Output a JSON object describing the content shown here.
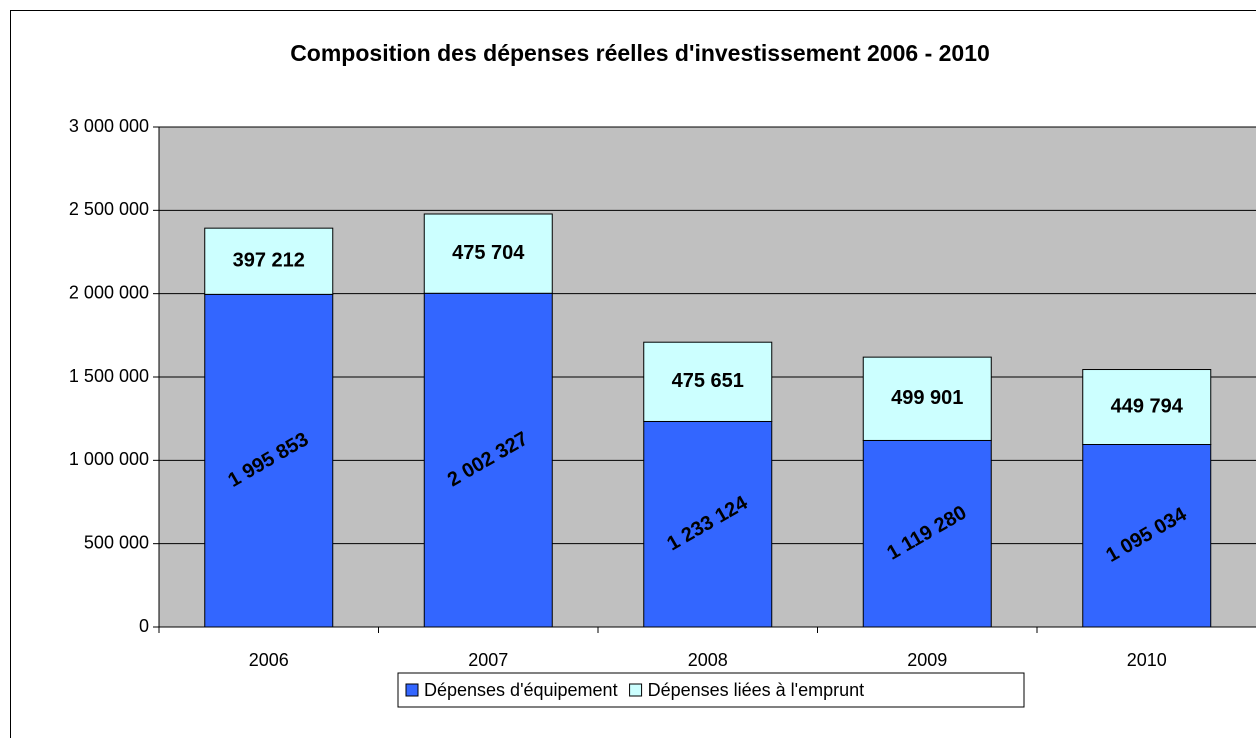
{
  "chart_data": {
    "type": "stacked_bar",
    "title": "Composition des dépenses réelles d'investissement  2006 -  2010",
    "categories": [
      "2006",
      "2007",
      "2008",
      "2009",
      "2010"
    ],
    "series": [
      {
        "name": "Dépenses d'équipement",
        "color": "#3366ff",
        "values": [
          1995853,
          2002327,
          1233124,
          1119280,
          1095034
        ],
        "value_labels": [
          "1 995 853",
          "2 002 327",
          "1 233 124",
          "1 119 280",
          "1 095 034"
        ]
      },
      {
        "name": "Dépenses liées à l'emprunt",
        "color": "#ccffff",
        "values": [
          397212,
          475704,
          475651,
          499901,
          449794
        ],
        "value_labels": [
          "397 212",
          "475 704",
          "475 651",
          "499 901",
          "449 794"
        ]
      }
    ],
    "ylim": [
      0,
      3000000
    ],
    "yticks": [
      0,
      {
        "value": 500000,
        "label": "500 000"
      },
      {
        "value": 1000000,
        "label": "1 000 000"
      },
      {
        "value": 1500000,
        "label": "1 500 000"
      },
      {
        "value": 2000000,
        "label": "2 000 000"
      },
      {
        "value": 2500000,
        "label": "2 500 000"
      },
      {
        "value": 3000000,
        "label": "3 000 000"
      }
    ],
    "grid": true,
    "legend": "bottom"
  }
}
